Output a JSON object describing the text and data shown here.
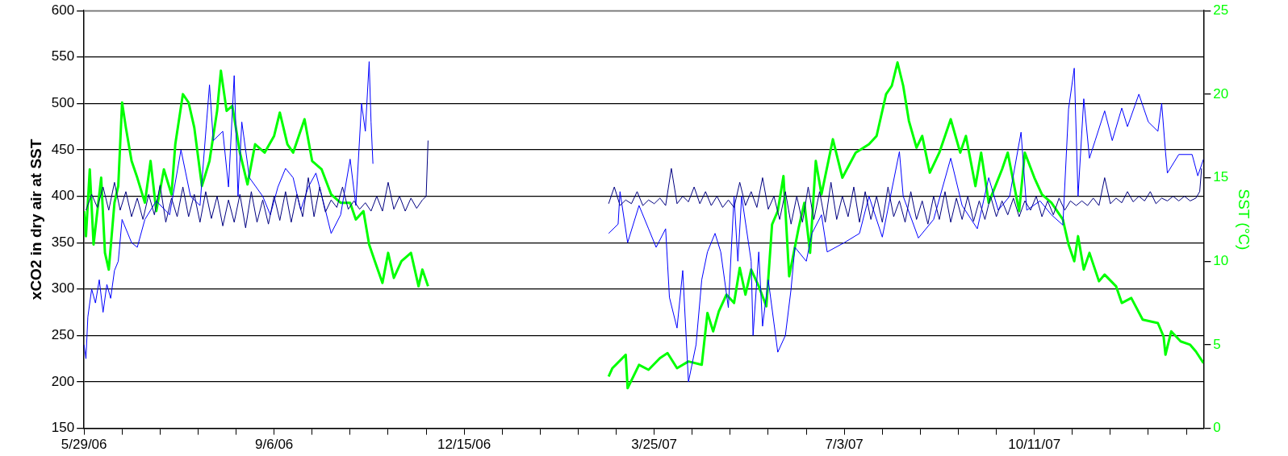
{
  "chart_data": {
    "type": "line",
    "ylabel": "xCO2 in dry air at SST",
    "y2label": "SST (°C)",
    "xlim": [
      "2006-05-29",
      "2008-01-08"
    ],
    "xticks": [
      {
        "value": "2006-05-29",
        "label": "5/29/06"
      },
      {
        "value": "2006-06-18",
        "label": null
      },
      {
        "value": "2006-07-08",
        "label": null
      },
      {
        "value": "2006-07-28",
        "label": null
      },
      {
        "value": "2006-08-17",
        "label": null
      },
      {
        "value": "2006-09-06",
        "label": "9/6/06"
      },
      {
        "value": "2006-09-26",
        "label": null
      },
      {
        "value": "2006-10-16",
        "label": null
      },
      {
        "value": "2006-11-05",
        "label": null
      },
      {
        "value": "2006-11-25",
        "label": null
      },
      {
        "value": "2006-12-15",
        "label": "12/15/06"
      },
      {
        "value": "2007-01-04",
        "label": null
      },
      {
        "value": "2007-01-24",
        "label": null
      },
      {
        "value": "2007-02-13",
        "label": null
      },
      {
        "value": "2007-03-05",
        "label": null
      },
      {
        "value": "2007-03-25",
        "label": "3/25/07"
      },
      {
        "value": "2007-04-14",
        "label": null
      },
      {
        "value": "2007-05-04",
        "label": null
      },
      {
        "value": "2007-05-24",
        "label": null
      },
      {
        "value": "2007-06-13",
        "label": null
      },
      {
        "value": "2007-07-03",
        "label": "7/3/07"
      },
      {
        "value": "2007-07-23",
        "label": null
      },
      {
        "value": "2007-08-12",
        "label": null
      },
      {
        "value": "2007-09-01",
        "label": null
      },
      {
        "value": "2007-09-21",
        "label": null
      },
      {
        "value": "2007-10-11",
        "label": "10/11/07"
      },
      {
        "value": "2007-10-31",
        "label": null
      },
      {
        "value": "2007-11-20",
        "label": null
      },
      {
        "value": "2007-12-10",
        "label": null
      },
      {
        "value": "2007-12-30",
        "label": null
      }
    ],
    "ylim": [
      150,
      600
    ],
    "yticks": [
      150,
      200,
      250,
      300,
      350,
      400,
      450,
      500,
      550,
      600
    ],
    "y2lim": [
      0,
      25
    ],
    "y2ticks": [
      0,
      5,
      10,
      15,
      20,
      25
    ],
    "grid": "y",
    "marker": "none",
    "line_style": "solid",
    "series": [
      {
        "color": "#000080",
        "x": [
          "2006-05-30",
          "2006-06-02",
          "2006-06-05",
          "2006-06-08",
          "2006-06-11",
          "2006-06-14",
          "2006-06-17",
          "2006-06-20",
          "2006-06-23",
          "2006-06-26",
          "2006-06-29",
          "2006-07-02",
          "2006-07-05",
          "2006-07-08",
          "2006-07-11",
          "2006-07-14",
          "2006-07-17",
          "2006-07-20",
          "2006-07-23",
          "2006-07-26",
          "2006-07-29",
          "2006-08-01",
          "2006-08-04",
          "2006-08-07",
          "2006-08-10",
          "2006-08-13",
          "2006-08-16",
          "2006-08-19",
          "2006-08-22",
          "2006-08-25",
          "2006-08-28",
          "2006-08-31",
          "2006-09-03",
          "2006-09-06",
          "2006-09-09",
          "2006-09-12",
          "2006-09-15",
          "2006-09-18",
          "2006-09-21",
          "2006-09-24",
          "2006-09-27",
          "2006-09-30",
          "2006-10-03",
          "2006-10-06",
          "2006-10-09",
          "2006-10-12",
          "2006-10-15",
          "2006-10-18",
          "2006-10-21",
          "2006-10-24",
          "2006-10-27",
          "2006-10-30",
          "2006-11-02",
          "2006-11-05",
          "2006-11-08",
          "2006-11-11",
          "2006-11-14",
          "2006-11-17",
          "2006-11-20",
          "2006-11-23",
          "2006-11-25",
          "2006-11-26",
          "2007-01-15",
          "2007-03-01",
          "2007-03-04",
          "2007-03-07",
          "2007-03-10",
          "2007-03-13",
          "2007-03-16",
          "2007-03-19",
          "2007-03-22",
          "2007-03-25",
          "2007-03-28",
          "2007-03-31",
          "2007-04-03",
          "2007-04-06",
          "2007-04-09",
          "2007-04-12",
          "2007-04-15",
          "2007-04-18",
          "2007-04-21",
          "2007-04-24",
          "2007-04-27",
          "2007-04-30",
          "2007-05-03",
          "2007-05-06",
          "2007-05-09",
          "2007-05-12",
          "2007-05-15",
          "2007-05-18",
          "2007-05-21",
          "2007-05-24",
          "2007-05-27",
          "2007-05-30",
          "2007-06-02",
          "2007-06-05",
          "2007-06-08",
          "2007-06-11",
          "2007-06-14",
          "2007-06-17",
          "2007-06-20",
          "2007-06-23",
          "2007-06-26",
          "2007-06-29",
          "2007-07-02",
          "2007-07-05",
          "2007-07-08",
          "2007-07-11",
          "2007-07-14",
          "2007-07-17",
          "2007-07-20",
          "2007-07-23",
          "2007-07-26",
          "2007-07-29",
          "2007-08-01",
          "2007-08-04",
          "2007-08-07",
          "2007-08-10",
          "2007-08-13",
          "2007-08-16",
          "2007-08-19",
          "2007-08-22",
          "2007-08-25",
          "2007-08-28",
          "2007-08-31",
          "2007-09-03",
          "2007-09-06",
          "2007-09-09",
          "2007-09-12",
          "2007-09-15",
          "2007-09-18",
          "2007-09-21",
          "2007-09-24",
          "2007-09-27",
          "2007-09-30",
          "2007-10-03",
          "2007-10-06",
          "2007-10-09",
          "2007-10-12",
          "2007-10-15",
          "2007-10-18",
          "2007-10-21",
          "2007-10-24",
          "2007-10-27",
          "2007-10-30",
          "2007-11-02",
          "2007-11-05",
          "2007-11-08",
          "2007-11-11",
          "2007-11-14",
          "2007-11-17",
          "2007-11-20",
          "2007-11-23",
          "2007-11-26",
          "2007-11-29",
          "2007-12-02",
          "2007-12-05",
          "2007-12-08",
          "2007-12-11",
          "2007-12-14",
          "2007-12-17",
          "2007-12-20",
          "2007-12-23",
          "2007-12-26",
          "2007-12-29",
          "2008-01-01",
          "2008-01-04",
          "2008-01-06",
          "2008-01-07"
        ],
        "values": [
          385,
          402,
          388,
          410,
          385,
          415,
          385,
          405,
          378,
          398,
          375,
          402,
          380,
          412,
          372,
          398,
          378,
          410,
          378,
          402,
          372,
          405,
          376,
          400,
          368,
          396,
          372,
          402,
          366,
          405,
          372,
          396,
          370,
          400,
          374,
          405,
          372,
          402,
          378,
          420,
          378,
          410,
          383,
          396,
          388,
          410,
          386,
          395,
          386,
          393,
          384,
          400,
          384,
          415,
          386,
          400,
          384,
          398,
          387,
          396,
          400,
          460,
          null,
          392,
          410,
          390,
          396,
          392,
          405,
          390,
          396,
          392,
          398,
          390,
          430,
          392,
          400,
          394,
          410,
          392,
          405,
          390,
          400,
          388,
          396,
          388,
          415,
          390,
          405,
          388,
          420,
          386,
          400,
          375,
          405,
          370,
          400,
          372,
          410,
          375,
          405,
          372,
          415,
          375,
          400,
          378,
          410,
          372,
          405,
          375,
          400,
          372,
          410,
          378,
          395,
          372,
          405,
          375,
          395,
          370,
          400,
          375,
          405,
          372,
          398,
          375,
          400,
          373,
          395,
          375,
          400,
          378,
          395,
          380,
          398,
          378,
          395,
          385,
          400,
          378,
          395,
          380,
          398,
          385,
          395,
          390,
          395,
          390,
          398,
          390,
          420,
          392,
          398,
          393,
          405,
          394,
          400,
          395,
          405,
          392,
          398,
          395,
          400,
          395,
          400,
          395,
          398,
          405,
          430
        ]
      },
      {
        "color": "#0000ff",
        "x": [
          "2006-05-29",
          "2006-05-30",
          "2006-05-31",
          "2006-06-02",
          "2006-06-04",
          "2006-06-06",
          "2006-06-08",
          "2006-06-10",
          "2006-06-12",
          "2006-06-14",
          "2006-06-16",
          "2006-06-18",
          "2006-06-23",
          "2006-06-26",
          "2006-06-30",
          "2006-07-06",
          "2006-07-13",
          "2006-07-19",
          "2006-07-24",
          "2006-07-29",
          "2006-08-03",
          "2006-08-05",
          "2006-08-10",
          "2006-08-13",
          "2006-08-16",
          "2006-08-18",
          "2006-08-20",
          "2006-08-24",
          "2006-08-31",
          "2006-09-04",
          "2006-09-08",
          "2006-09-12",
          "2006-09-16",
          "2006-09-20",
          "2006-09-24",
          "2006-09-28",
          "2006-10-03",
          "2006-10-06",
          "2006-10-11",
          "2006-10-16",
          "2006-10-19",
          "2006-10-22",
          "2006-10-24",
          "2006-10-26",
          "2006-10-27",
          "2006-10-28",
          "2007-01-15",
          "2007-03-01",
          "2007-03-06",
          "2007-03-07",
          "2007-03-11",
          "2007-03-17",
          "2007-03-22",
          "2007-03-26",
          "2007-03-31",
          "2007-04-02",
          "2007-04-06",
          "2007-04-09",
          "2007-04-12",
          "2007-04-16",
          "2007-04-19",
          "2007-04-22",
          "2007-04-26",
          "2007-04-29",
          "2007-05-03",
          "2007-05-06",
          "2007-05-08",
          "2007-05-10",
          "2007-05-15",
          "2007-05-16",
          "2007-05-19",
          "2007-05-21",
          "2007-05-24",
          "2007-05-29",
          "2007-06-02",
          "2007-06-05",
          "2007-06-07",
          "2007-06-13",
          "2007-06-16",
          "2007-06-21",
          "2007-06-24",
          "2007-07-03",
          "2007-07-11",
          "2007-07-16",
          "2007-07-23",
          "2007-08-01",
          "2007-08-03",
          "2007-08-11",
          "2007-08-19",
          "2007-08-28",
          "2007-09-03",
          "2007-09-11",
          "2007-09-17",
          "2007-09-22",
          "2007-09-28",
          "2007-10-04",
          "2007-10-07",
          "2007-10-14",
          "2007-10-20",
          "2007-10-26",
          "2007-10-29",
          "2007-11-01",
          "2007-11-03",
          "2007-11-06",
          "2007-11-09",
          "2007-11-12",
          "2007-11-17",
          "2007-11-21",
          "2007-11-26",
          "2007-11-29",
          "2007-12-05",
          "2007-12-10",
          "2007-12-15",
          "2007-12-17",
          "2007-12-19",
          "2007-12-20",
          "2007-12-26",
          "2008-01-02",
          "2008-01-05",
          "2008-01-08"
        ],
        "values": [
          240,
          225,
          270,
          300,
          285,
          310,
          275,
          305,
          290,
          320,
          330,
          375,
          350,
          345,
          375,
          395,
          380,
          450,
          400,
          390,
          520,
          460,
          470,
          410,
          530,
          400,
          480,
          420,
          400,
          380,
          410,
          430,
          420,
          385,
          410,
          425,
          385,
          360,
          380,
          440,
          390,
          500,
          470,
          545,
          480,
          435,
          null,
          360,
          370,
          405,
          350,
          390,
          365,
          345,
          365,
          291,
          258,
          320,
          200,
          240,
          310,
          340,
          360,
          340,
          280,
          400,
          330,
          400,
          330,
          250,
          340,
          260,
          310,
          232,
          250,
          300,
          345,
          330,
          360,
          380,
          340,
          350,
          360,
          400,
          356,
          448,
          400,
          355,
          375,
          441,
          390,
          365,
          420,
          385,
          400,
          469,
          385,
          395,
          380,
          369,
          494,
          538,
          400,
          505,
          441,
          460,
          492,
          460,
          495,
          475,
          510,
          480,
          470,
          500,
          448,
          425,
          445,
          445,
          422,
          440
        ]
      },
      {
        "color": "#00ff00",
        "axis": "y2",
        "x": [
          "2006-05-29",
          "2006-05-30",
          "2006-06-01",
          "2006-06-03",
          "2006-06-05",
          "2006-06-07",
          "2006-06-09",
          "2006-06-11",
          "2006-06-14",
          "2006-06-16",
          "2006-06-18",
          "2006-06-20",
          "2006-06-23",
          "2006-06-26",
          "2006-06-30",
          "2006-07-03",
          "2006-07-06",
          "2006-07-10",
          "2006-07-14",
          "2006-07-16",
          "2006-07-20",
          "2006-07-23",
          "2006-07-26",
          "2006-07-30",
          "2006-08-03",
          "2006-08-07",
          "2006-08-09",
          "2006-08-12",
          "2006-08-15",
          "2006-08-19",
          "2006-08-23",
          "2006-08-27",
          "2006-09-01",
          "2006-09-06",
          "2006-09-09",
          "2006-09-13",
          "2006-09-16",
          "2006-09-19",
          "2006-09-22",
          "2006-09-26",
          "2006-10-01",
          "2006-10-06",
          "2006-10-11",
          "2006-10-16",
          "2006-10-19",
          "2006-10-23",
          "2006-10-26",
          "2006-10-29",
          "2006-11-02",
          "2006-11-05",
          "2006-11-08",
          "2006-11-12",
          "2006-11-17",
          "2006-11-21",
          "2006-11-23",
          "2006-11-26",
          "2007-01-15",
          "2007-03-01",
          "2007-03-03",
          "2007-03-10",
          "2007-03-11",
          "2007-03-17",
          "2007-03-22",
          "2007-03-28",
          "2007-04-01",
          "2007-04-06",
          "2007-04-12",
          "2007-04-19",
          "2007-04-22",
          "2007-04-25",
          "2007-04-28",
          "2007-05-02",
          "2007-05-06",
          "2007-05-09",
          "2007-05-12",
          "2007-05-15",
          "2007-05-19",
          "2007-05-23",
          "2007-05-26",
          "2007-05-29",
          "2007-06-01",
          "2007-06-04",
          "2007-06-09",
          "2007-06-12",
          "2007-06-15",
          "2007-06-18",
          "2007-06-21",
          "2007-06-27",
          "2007-07-02",
          "2007-07-09",
          "2007-07-16",
          "2007-07-20",
          "2007-07-25",
          "2007-07-28",
          "2007-07-31",
          "2007-08-03",
          "2007-08-06",
          "2007-08-10",
          "2007-08-13",
          "2007-08-17",
          "2007-08-22",
          "2007-08-28",
          "2007-09-02",
          "2007-09-05",
          "2007-09-10",
          "2007-09-13",
          "2007-09-17",
          "2007-09-24",
          "2007-09-27",
          "2007-10-03",
          "2007-10-06",
          "2007-10-11",
          "2007-10-15",
          "2007-10-20",
          "2007-10-26",
          "2007-10-29",
          "2007-11-01",
          "2007-11-03",
          "2007-11-06",
          "2007-11-09",
          "2007-11-14",
          "2007-11-17",
          "2007-11-23",
          "2007-11-26",
          "2007-12-01",
          "2007-12-07",
          "2007-12-15",
          "2007-12-18",
          "2007-12-19",
          "2007-12-22",
          "2007-12-27",
          "2008-01-01",
          "2008-01-04",
          "2008-01-08"
        ],
        "values": [
          13,
          11.5,
          15.5,
          11,
          13,
          15,
          10.5,
          9.5,
          13.5,
          14.5,
          19.5,
          18,
          16,
          15,
          13.5,
          16,
          13,
          15.5,
          14,
          17,
          20,
          19.5,
          18,
          14.5,
          16,
          19,
          21.4,
          19,
          19.3,
          16.5,
          14.6,
          17,
          16.5,
          17.5,
          18.9,
          17,
          16.5,
          17.5,
          18.5,
          16,
          15.5,
          14,
          13.5,
          13.5,
          12.5,
          13,
          11,
          10,
          8.7,
          10.5,
          9,
          10,
          10.5,
          8.5,
          9.5,
          8.5,
          null,
          3.1,
          3.6,
          4.4,
          2.4,
          3.8,
          3.5,
          4.2,
          4.5,
          3.6,
          4,
          3.8,
          6.9,
          5.8,
          7,
          8,
          7.5,
          9.6,
          8,
          9.5,
          8.5,
          7.3,
          12.2,
          13,
          15.1,
          9.1,
          12,
          13.5,
          10.5,
          16,
          14,
          17.3,
          15,
          16.5,
          17,
          17.5,
          20,
          20.5,
          21.9,
          20.5,
          18.4,
          16.8,
          17.5,
          15.3,
          16.5,
          18.5,
          16.5,
          17.5,
          14.5,
          16.5,
          13.5,
          15.5,
          16.5,
          13,
          16.5,
          15,
          14,
          13.5,
          12.5,
          11,
          10,
          11.5,
          9.5,
          10.5,
          8.8,
          9.2,
          8.5,
          7.5,
          7.8,
          6.5,
          6.3,
          5.5,
          4.4,
          5.8,
          5.2,
          5,
          4.6,
          3.9
        ]
      }
    ]
  }
}
